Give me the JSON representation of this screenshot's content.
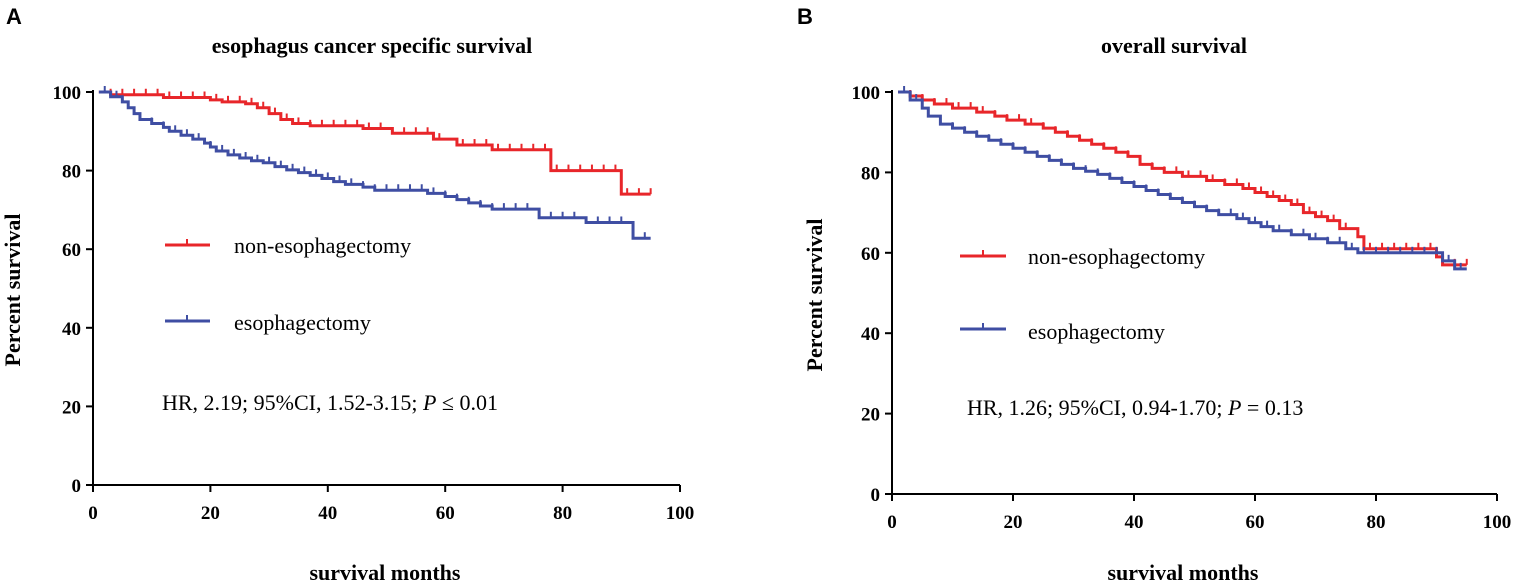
{
  "colors": {
    "non_esophagectomy": "#e8262a",
    "esophagectomy": "#3f4ea3",
    "axis": "#000000"
  },
  "chart_data": [
    {
      "panel": "A",
      "type": "line",
      "title": "esophagus cancer specific survival",
      "xlabel": "survival months",
      "ylabel": "Percent survival",
      "xlim": [
        0,
        100
      ],
      "ylim": [
        0,
        100
      ],
      "xticks": [
        "0",
        "20",
        "40",
        "60",
        "80",
        "100"
      ],
      "yticks": [
        "0",
        "20",
        "40",
        "60",
        "80",
        "100"
      ],
      "annotation": {
        "prefix": "HR, 2.19; 95%CI, 1.52-3.15; ",
        "p_symbol": "P",
        "p_value": " ≤ 0.01"
      },
      "series": [
        {
          "name": "non-esophagectomy",
          "color": "#e8262a",
          "steps": [
            [
              1,
              100
            ],
            [
              3,
              99.3
            ],
            [
              12,
              98.6
            ],
            [
              20,
              98
            ],
            [
              22,
              97.5
            ],
            [
              26,
              97
            ],
            [
              28,
              96
            ],
            [
              30,
              94.5
            ],
            [
              32,
              93
            ],
            [
              34,
              92
            ],
            [
              37,
              91.4
            ],
            [
              46,
              90.7
            ],
            [
              51,
              89.5
            ],
            [
              58,
              88
            ],
            [
              62,
              86.5
            ],
            [
              68,
              85.3
            ],
            [
              78,
              80
            ],
            [
              90,
              74
            ],
            [
              95,
              74
            ]
          ],
          "censors": [
            3,
            5,
            7,
            9,
            11,
            13,
            15,
            17,
            19,
            21,
            23,
            25,
            27,
            29,
            31,
            33,
            35,
            37,
            39,
            41,
            43,
            45,
            47,
            49,
            51,
            53,
            55,
            57,
            59,
            63,
            65,
            67,
            69,
            71,
            73,
            75,
            77,
            79,
            81,
            83,
            85,
            87,
            89,
            91,
            93,
            95
          ]
        },
        {
          "name": "esophagectomy",
          "color": "#3f4ea3",
          "steps": [
            [
              1,
              100
            ],
            [
              3,
              98.8
            ],
            [
              5,
              97.5
            ],
            [
              6,
              96
            ],
            [
              7,
              94.5
            ],
            [
              8,
              93
            ],
            [
              10,
              92
            ],
            [
              12,
              91
            ],
            [
              13,
              90
            ],
            [
              15,
              89
            ],
            [
              17,
              88
            ],
            [
              19,
              87
            ],
            [
              20,
              86
            ],
            [
              21,
              85
            ],
            [
              23,
              84
            ],
            [
              25,
              83.2
            ],
            [
              27,
              82.5
            ],
            [
              29,
              82
            ],
            [
              31,
              81
            ],
            [
              33,
              80.2
            ],
            [
              35,
              79.5
            ],
            [
              37,
              78.8
            ],
            [
              39,
              78
            ],
            [
              41,
              77.2
            ],
            [
              43,
              76.5
            ],
            [
              46,
              75.8
            ],
            [
              48,
              75
            ],
            [
              57,
              74.2
            ],
            [
              60,
              73.4
            ],
            [
              62,
              72.6
            ],
            [
              64,
              71.8
            ],
            [
              66,
              71
            ],
            [
              68,
              70.2
            ],
            [
              76,
              68
            ],
            [
              84,
              66.8
            ],
            [
              92,
              62.8
            ],
            [
              95,
              62.8
            ]
          ],
          "censors": [
            2,
            4,
            6,
            8,
            10,
            12,
            14,
            16,
            18,
            20,
            22,
            24,
            26,
            28,
            30,
            32,
            34,
            36,
            38,
            40,
            42,
            44,
            46,
            48,
            50,
            52,
            54,
            56,
            58,
            60,
            62,
            64,
            66,
            68,
            70,
            72,
            74,
            76,
            78,
            80,
            82,
            84,
            86,
            88,
            90,
            92,
            94
          ]
        }
      ]
    },
    {
      "panel": "B",
      "type": "line",
      "title": "overall survival",
      "xlabel": "survival months",
      "ylabel": "Percent survival",
      "xlim": [
        0,
        100
      ],
      "ylim": [
        0,
        100
      ],
      "xticks": [
        "0",
        "20",
        "40",
        "60",
        "80",
        "100"
      ],
      "yticks": [
        "0",
        "20",
        "40",
        "60",
        "80",
        "100"
      ],
      "annotation": {
        "prefix": "HR, 1.26; 95%CI, 0.94-1.70; ",
        "p_symbol": "P",
        "p_value": " = 0.13"
      },
      "series": [
        {
          "name": "non-esophagectomy",
          "color": "#e8262a",
          "steps": [
            [
              1,
              100
            ],
            [
              3,
              99
            ],
            [
              5,
              98
            ],
            [
              7,
              97
            ],
            [
              10,
              96
            ],
            [
              14,
              95
            ],
            [
              17,
              94
            ],
            [
              19,
              93
            ],
            [
              22,
              92
            ],
            [
              25,
              91
            ],
            [
              27,
              90
            ],
            [
              29,
              89
            ],
            [
              31,
              88
            ],
            [
              33,
              87
            ],
            [
              35,
              86
            ],
            [
              37,
              85
            ],
            [
              39,
              84
            ],
            [
              41,
              82
            ],
            [
              43,
              81
            ],
            [
              45,
              80
            ],
            [
              48,
              79
            ],
            [
              52,
              78
            ],
            [
              55,
              77
            ],
            [
              58,
              76
            ],
            [
              60,
              75
            ],
            [
              62,
              74
            ],
            [
              64,
              73
            ],
            [
              66,
              72
            ],
            [
              68,
              70
            ],
            [
              70,
              69
            ],
            [
              72,
              68
            ],
            [
              74,
              66
            ],
            [
              77,
              64
            ],
            [
              78,
              61
            ],
            [
              90,
              59
            ],
            [
              91,
              57
            ],
            [
              95,
              57
            ]
          ],
          "censors": [
            3,
            5,
            7,
            9,
            11,
            13,
            15,
            17,
            19,
            21,
            23,
            25,
            27,
            29,
            31,
            33,
            35,
            37,
            39,
            41,
            43,
            45,
            47,
            49,
            51,
            53,
            55,
            57,
            59,
            61,
            63,
            65,
            67,
            69,
            71,
            73,
            75,
            77,
            79,
            81,
            83,
            85,
            87,
            89,
            91,
            93,
            95
          ]
        },
        {
          "name": "esophagectomy",
          "color": "#3f4ea3",
          "steps": [
            [
              1,
              100
            ],
            [
              3,
              98
            ],
            [
              5,
              96
            ],
            [
              6,
              94
            ],
            [
              8,
              92
            ],
            [
              10,
              91
            ],
            [
              12,
              90
            ],
            [
              14,
              89
            ],
            [
              16,
              88
            ],
            [
              18,
              87
            ],
            [
              20,
              86
            ],
            [
              22,
              85
            ],
            [
              24,
              84
            ],
            [
              26,
              83
            ],
            [
              28,
              82
            ],
            [
              30,
              81
            ],
            [
              32,
              80.3
            ],
            [
              34,
              79.5
            ],
            [
              36,
              78.5
            ],
            [
              38,
              77.5
            ],
            [
              40,
              76.5
            ],
            [
              42,
              75.5
            ],
            [
              44,
              74.5
            ],
            [
              46,
              73.5
            ],
            [
              48,
              72.5
            ],
            [
              50,
              71.5
            ],
            [
              52,
              70.5
            ],
            [
              54,
              69.5
            ],
            [
              57,
              68.5
            ],
            [
              59,
              67.5
            ],
            [
              61,
              66.5
            ],
            [
              63,
              65.5
            ],
            [
              66,
              64.5
            ],
            [
              69,
              63.5
            ],
            [
              72,
              62.5
            ],
            [
              75,
              61
            ],
            [
              77,
              60
            ],
            [
              91,
              58
            ],
            [
              93,
              56
            ],
            [
              95,
              56
            ]
          ],
          "censors": [
            2,
            4,
            6,
            8,
            10,
            12,
            14,
            16,
            18,
            20,
            22,
            24,
            26,
            28,
            30,
            32,
            34,
            36,
            38,
            40,
            42,
            44,
            46,
            48,
            50,
            52,
            54,
            56,
            58,
            60,
            62,
            64,
            66,
            68,
            70,
            72,
            74,
            76,
            78,
            80,
            82,
            84,
            86,
            88,
            90,
            92,
            94
          ]
        }
      ]
    }
  ]
}
